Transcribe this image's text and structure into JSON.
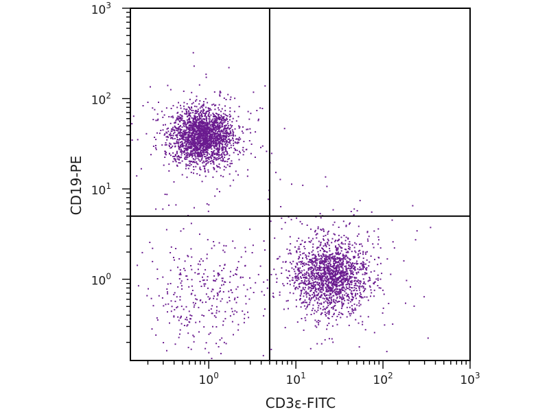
{
  "chart_data": {
    "type": "scatter",
    "title": "",
    "xlabel": "CD3ε-FITC",
    "ylabel": "CD19-PE",
    "x_scale": "log",
    "y_scale": "log",
    "xlim": [
      0.126,
      1000
    ],
    "ylim": [
      0.126,
      1000
    ],
    "x_ticks": [
      {
        "value": 1,
        "base": "10",
        "exp": "0"
      },
      {
        "value": 10,
        "base": "10",
        "exp": "1"
      },
      {
        "value": 100,
        "base": "10",
        "exp": "2"
      },
      {
        "value": 1000,
        "base": "10",
        "exp": "3"
      }
    ],
    "y_ticks": [
      {
        "value": 1,
        "base": "10",
        "exp": "0"
      },
      {
        "value": 10,
        "base": "10",
        "exp": "1"
      },
      {
        "value": 100,
        "base": "10",
        "exp": "2"
      },
      {
        "value": 1000,
        "base": "10",
        "exp": "3"
      }
    ],
    "quadrant_gate": {
      "x": 5.0,
      "y": 5.0
    },
    "grid": false,
    "point_color": "#6a1b8f",
    "populations": [
      {
        "center_x": 0.85,
        "center_y": 38,
        "spread_log_x": 0.17,
        "spread_log_y": 0.15,
        "count": 2200
      },
      {
        "center_x": 25,
        "center_y": 1.1,
        "spread_log_x": 0.22,
        "spread_log_y": 0.2,
        "count": 1700
      },
      {
        "center_x": 0.9,
        "center_y": 0.7,
        "spread_log_x": 0.32,
        "spread_log_y": 0.3,
        "count": 320
      }
    ]
  }
}
